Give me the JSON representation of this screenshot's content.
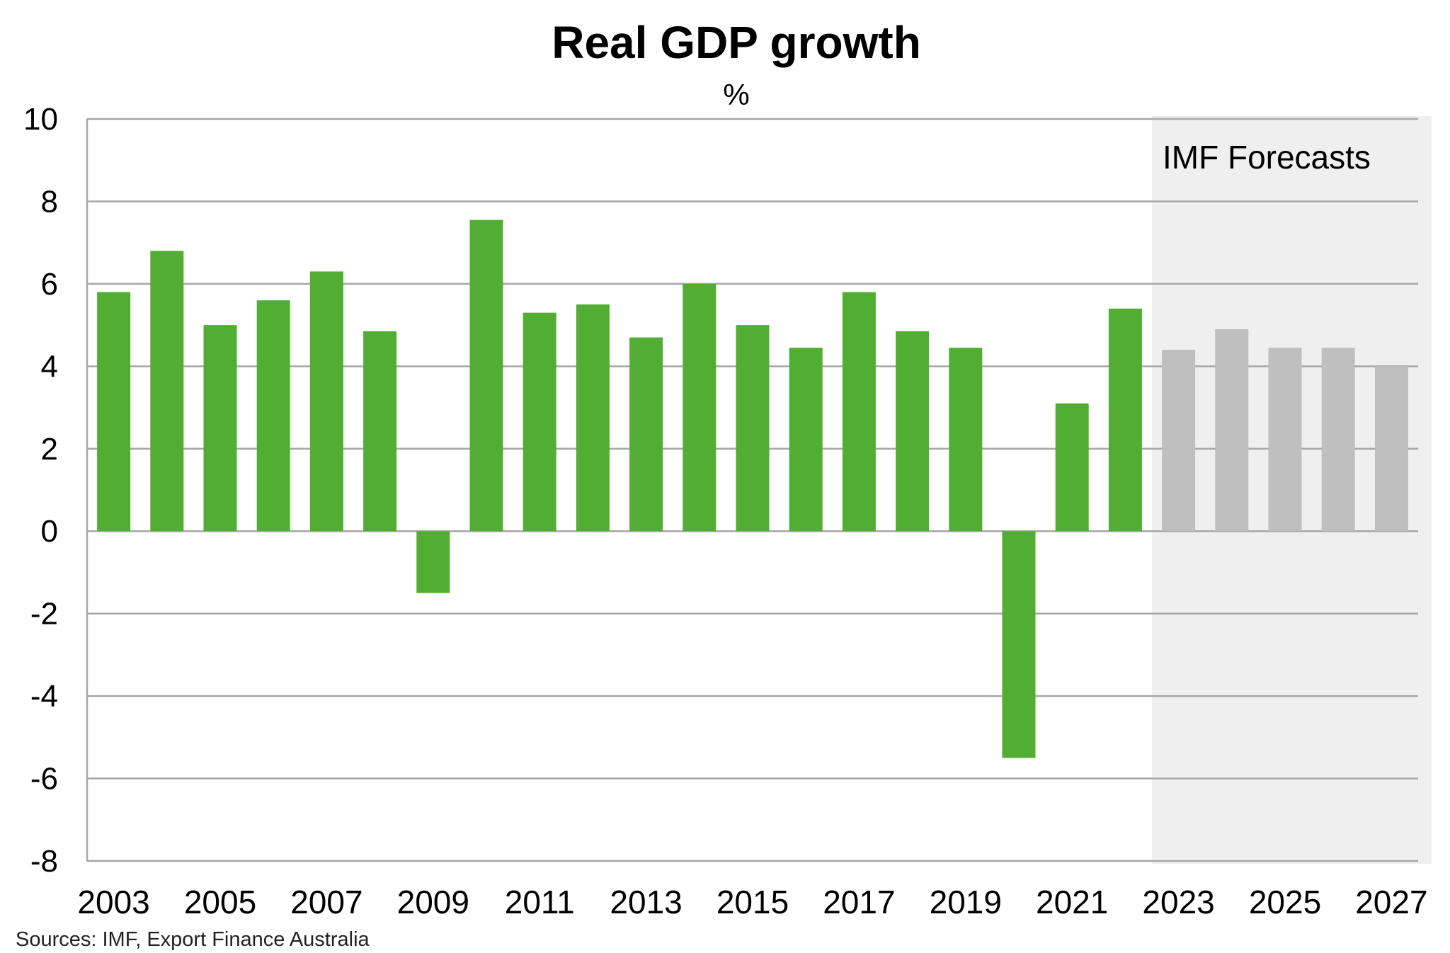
{
  "chart_data": {
    "type": "bar",
    "title": "Real GDP growth",
    "subtitle": "%",
    "categories": [
      "2003",
      "2004",
      "2005",
      "2006",
      "2007",
      "2008",
      "2009",
      "2010",
      "2011",
      "2012",
      "2013",
      "2014",
      "2015",
      "2016",
      "2017",
      "2018",
      "2019",
      "2020",
      "2021",
      "2022",
      "2023",
      "2024",
      "2025",
      "2026",
      "2027"
    ],
    "values": [
      5.8,
      6.8,
      5.0,
      5.6,
      6.3,
      4.85,
      -1.5,
      7.55,
      5.3,
      5.5,
      4.7,
      6.0,
      5.0,
      4.45,
      5.8,
      4.85,
      4.45,
      -5.5,
      3.1,
      5.4,
      4.4,
      4.9,
      4.45,
      4.45,
      4.0
    ],
    "forecast": [
      false,
      false,
      false,
      false,
      false,
      false,
      false,
      false,
      false,
      false,
      false,
      false,
      false,
      false,
      false,
      false,
      false,
      false,
      false,
      false,
      true,
      true,
      true,
      true,
      true
    ],
    "x_tick_labels": [
      "2003",
      "2005",
      "2007",
      "2009",
      "2011",
      "2013",
      "2015",
      "2017",
      "2019",
      "2021",
      "2023",
      "2025",
      "2027"
    ],
    "y_ticks": [
      10,
      8,
      6,
      4,
      2,
      0,
      -2,
      -4,
      -6,
      -8
    ],
    "ylim": [
      -8,
      10
    ],
    "grid": true,
    "forecast_region_label": "IMF Forecasts",
    "source": "Sources: IMF, Export Finance Australia",
    "colors": {
      "actual": "#52ae32",
      "forecast": "#bfbfbf",
      "forecast_band": "#efefef",
      "grid": "#a6a6a6"
    }
  }
}
